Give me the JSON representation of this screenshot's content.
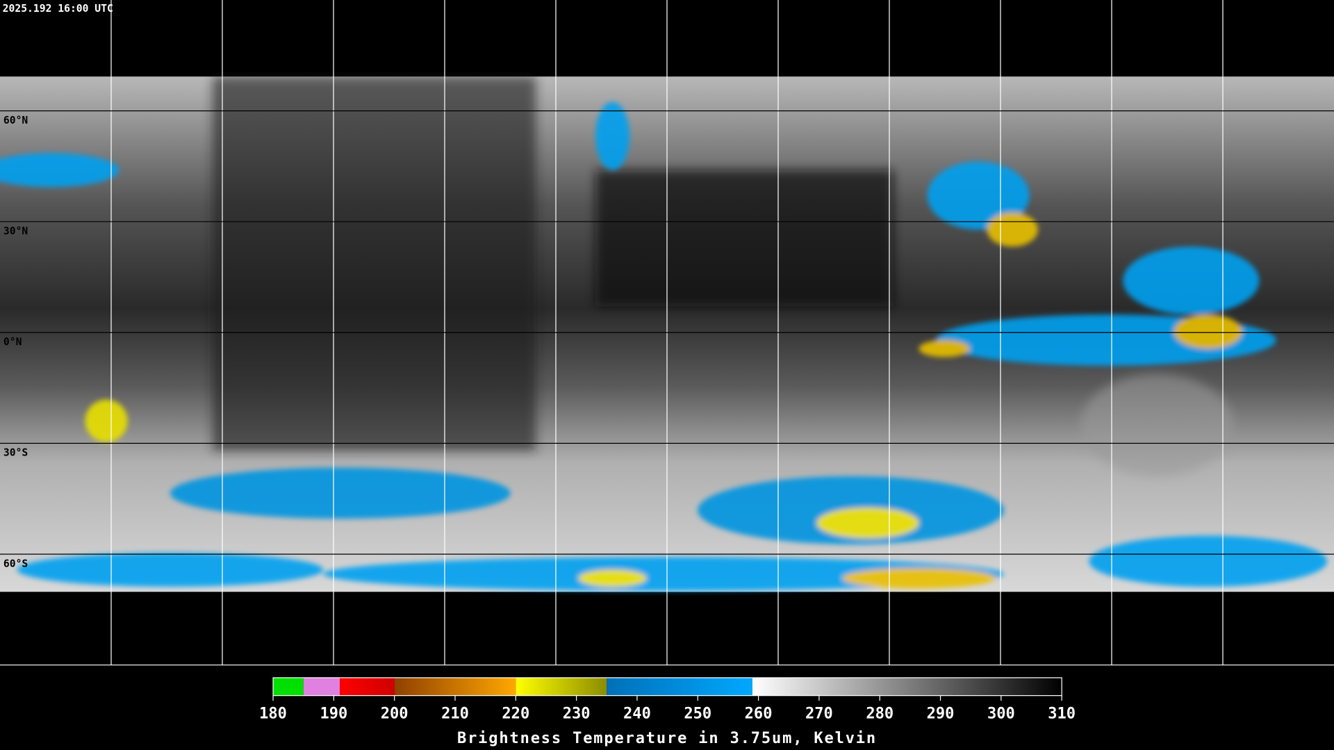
{
  "header": {
    "timestamp": "2025.192 16:00 UTC"
  },
  "map": {
    "lat_lines": [
      {
        "value": 60,
        "label": "60°N"
      },
      {
        "value": 30,
        "label": "30°N"
      },
      {
        "value": 0,
        "label": "0°N"
      },
      {
        "value": -30,
        "label": "30°S"
      },
      {
        "value": -60,
        "label": "60°S"
      }
    ]
  },
  "colorbar": {
    "range": [
      180,
      310
    ],
    "ticks": [
      180,
      190,
      200,
      210,
      220,
      230,
      240,
      250,
      260,
      270,
      280,
      290,
      300,
      310
    ],
    "segments": [
      {
        "from": 180,
        "to": 185,
        "color_start": "#00e000",
        "color_end": "#00e000"
      },
      {
        "from": 185,
        "to": 191,
        "color_start": "#e080e0",
        "color_end": "#e080e0"
      },
      {
        "from": 191,
        "to": 200,
        "color_start": "#ff0000",
        "color_end": "#d00000"
      },
      {
        "from": 200,
        "to": 220,
        "color_start": "#904000",
        "color_end": "#ffa800"
      },
      {
        "from": 220,
        "to": 235,
        "color_start": "#ffff00",
        "color_end": "#8c8c00"
      },
      {
        "from": 235,
        "to": 259,
        "color_start": "#0070b8",
        "color_end": "#00a8ff"
      },
      {
        "from": 259,
        "to": 310,
        "color_start": "#ffffff",
        "color_end": "#000000"
      }
    ],
    "label": "Brightness Temperature in 3.75um, Kelvin"
  }
}
